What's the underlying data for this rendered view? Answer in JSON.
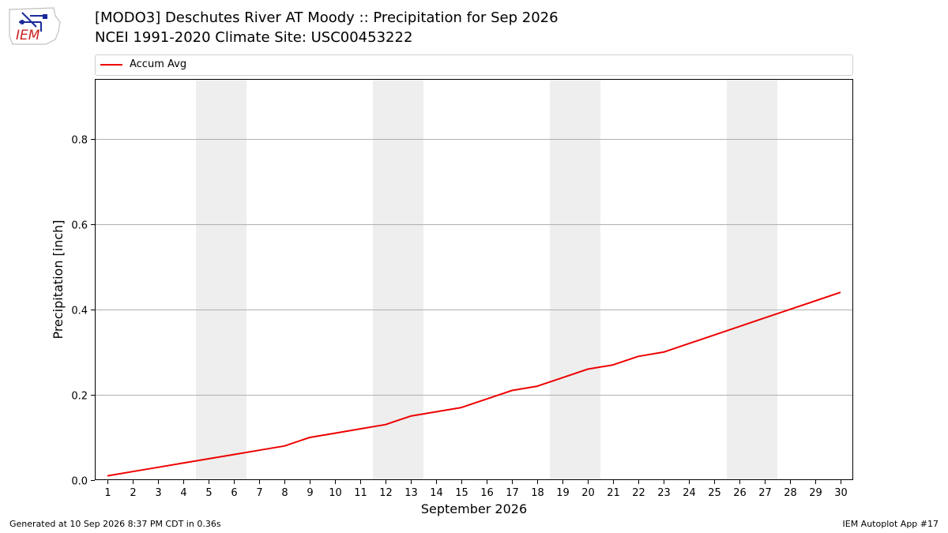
{
  "header": {
    "logo_text": "IEM",
    "title_line1": "[MODO3] Deschutes River  AT Moody :: Precipitation for Sep 2026",
    "title_line2": "NCEI 1991-2020 Climate Site: USC00453222"
  },
  "legend": {
    "label": "Accum Avg",
    "color": "#ee0000"
  },
  "footer": {
    "left": "Generated at 10 Sep 2026 8:37 PM CDT in 0.36s",
    "right": "IEM Autoplot App #17"
  },
  "chart_data": {
    "type": "line",
    "xlabel": "September 2026",
    "ylabel": "Precipitation [inch]",
    "x": [
      1,
      2,
      3,
      4,
      5,
      6,
      7,
      8,
      9,
      10,
      11,
      12,
      13,
      14,
      15,
      16,
      17,
      18,
      19,
      20,
      21,
      22,
      23,
      24,
      25,
      26,
      27,
      28,
      29,
      30
    ],
    "xlim": [
      0.5,
      30.5
    ],
    "ylim": [
      0,
      0.94
    ],
    "yticks": [
      0.0,
      0.2,
      0.4,
      0.6,
      0.8
    ],
    "ytick_labels": [
      "0.0",
      "0.2",
      "0.4",
      "0.6",
      "0.8"
    ],
    "grid": "horizontal",
    "legend_position": "top",
    "weekend_shading": [
      [
        4.5,
        6.5
      ],
      [
        11.5,
        13.5
      ],
      [
        18.5,
        20.5
      ],
      [
        25.5,
        27.5
      ]
    ],
    "series": [
      {
        "name": "Accum Avg",
        "color": "#ee0000",
        "values": [
          0.01,
          0.02,
          0.03,
          0.04,
          0.05,
          0.06,
          0.07,
          0.08,
          0.1,
          0.11,
          0.12,
          0.13,
          0.15,
          0.16,
          0.17,
          0.19,
          0.21,
          0.22,
          0.24,
          0.26,
          0.27,
          0.29,
          0.3,
          0.32,
          0.34,
          0.36,
          0.38,
          0.4,
          0.42,
          0.44
        ]
      }
    ]
  }
}
